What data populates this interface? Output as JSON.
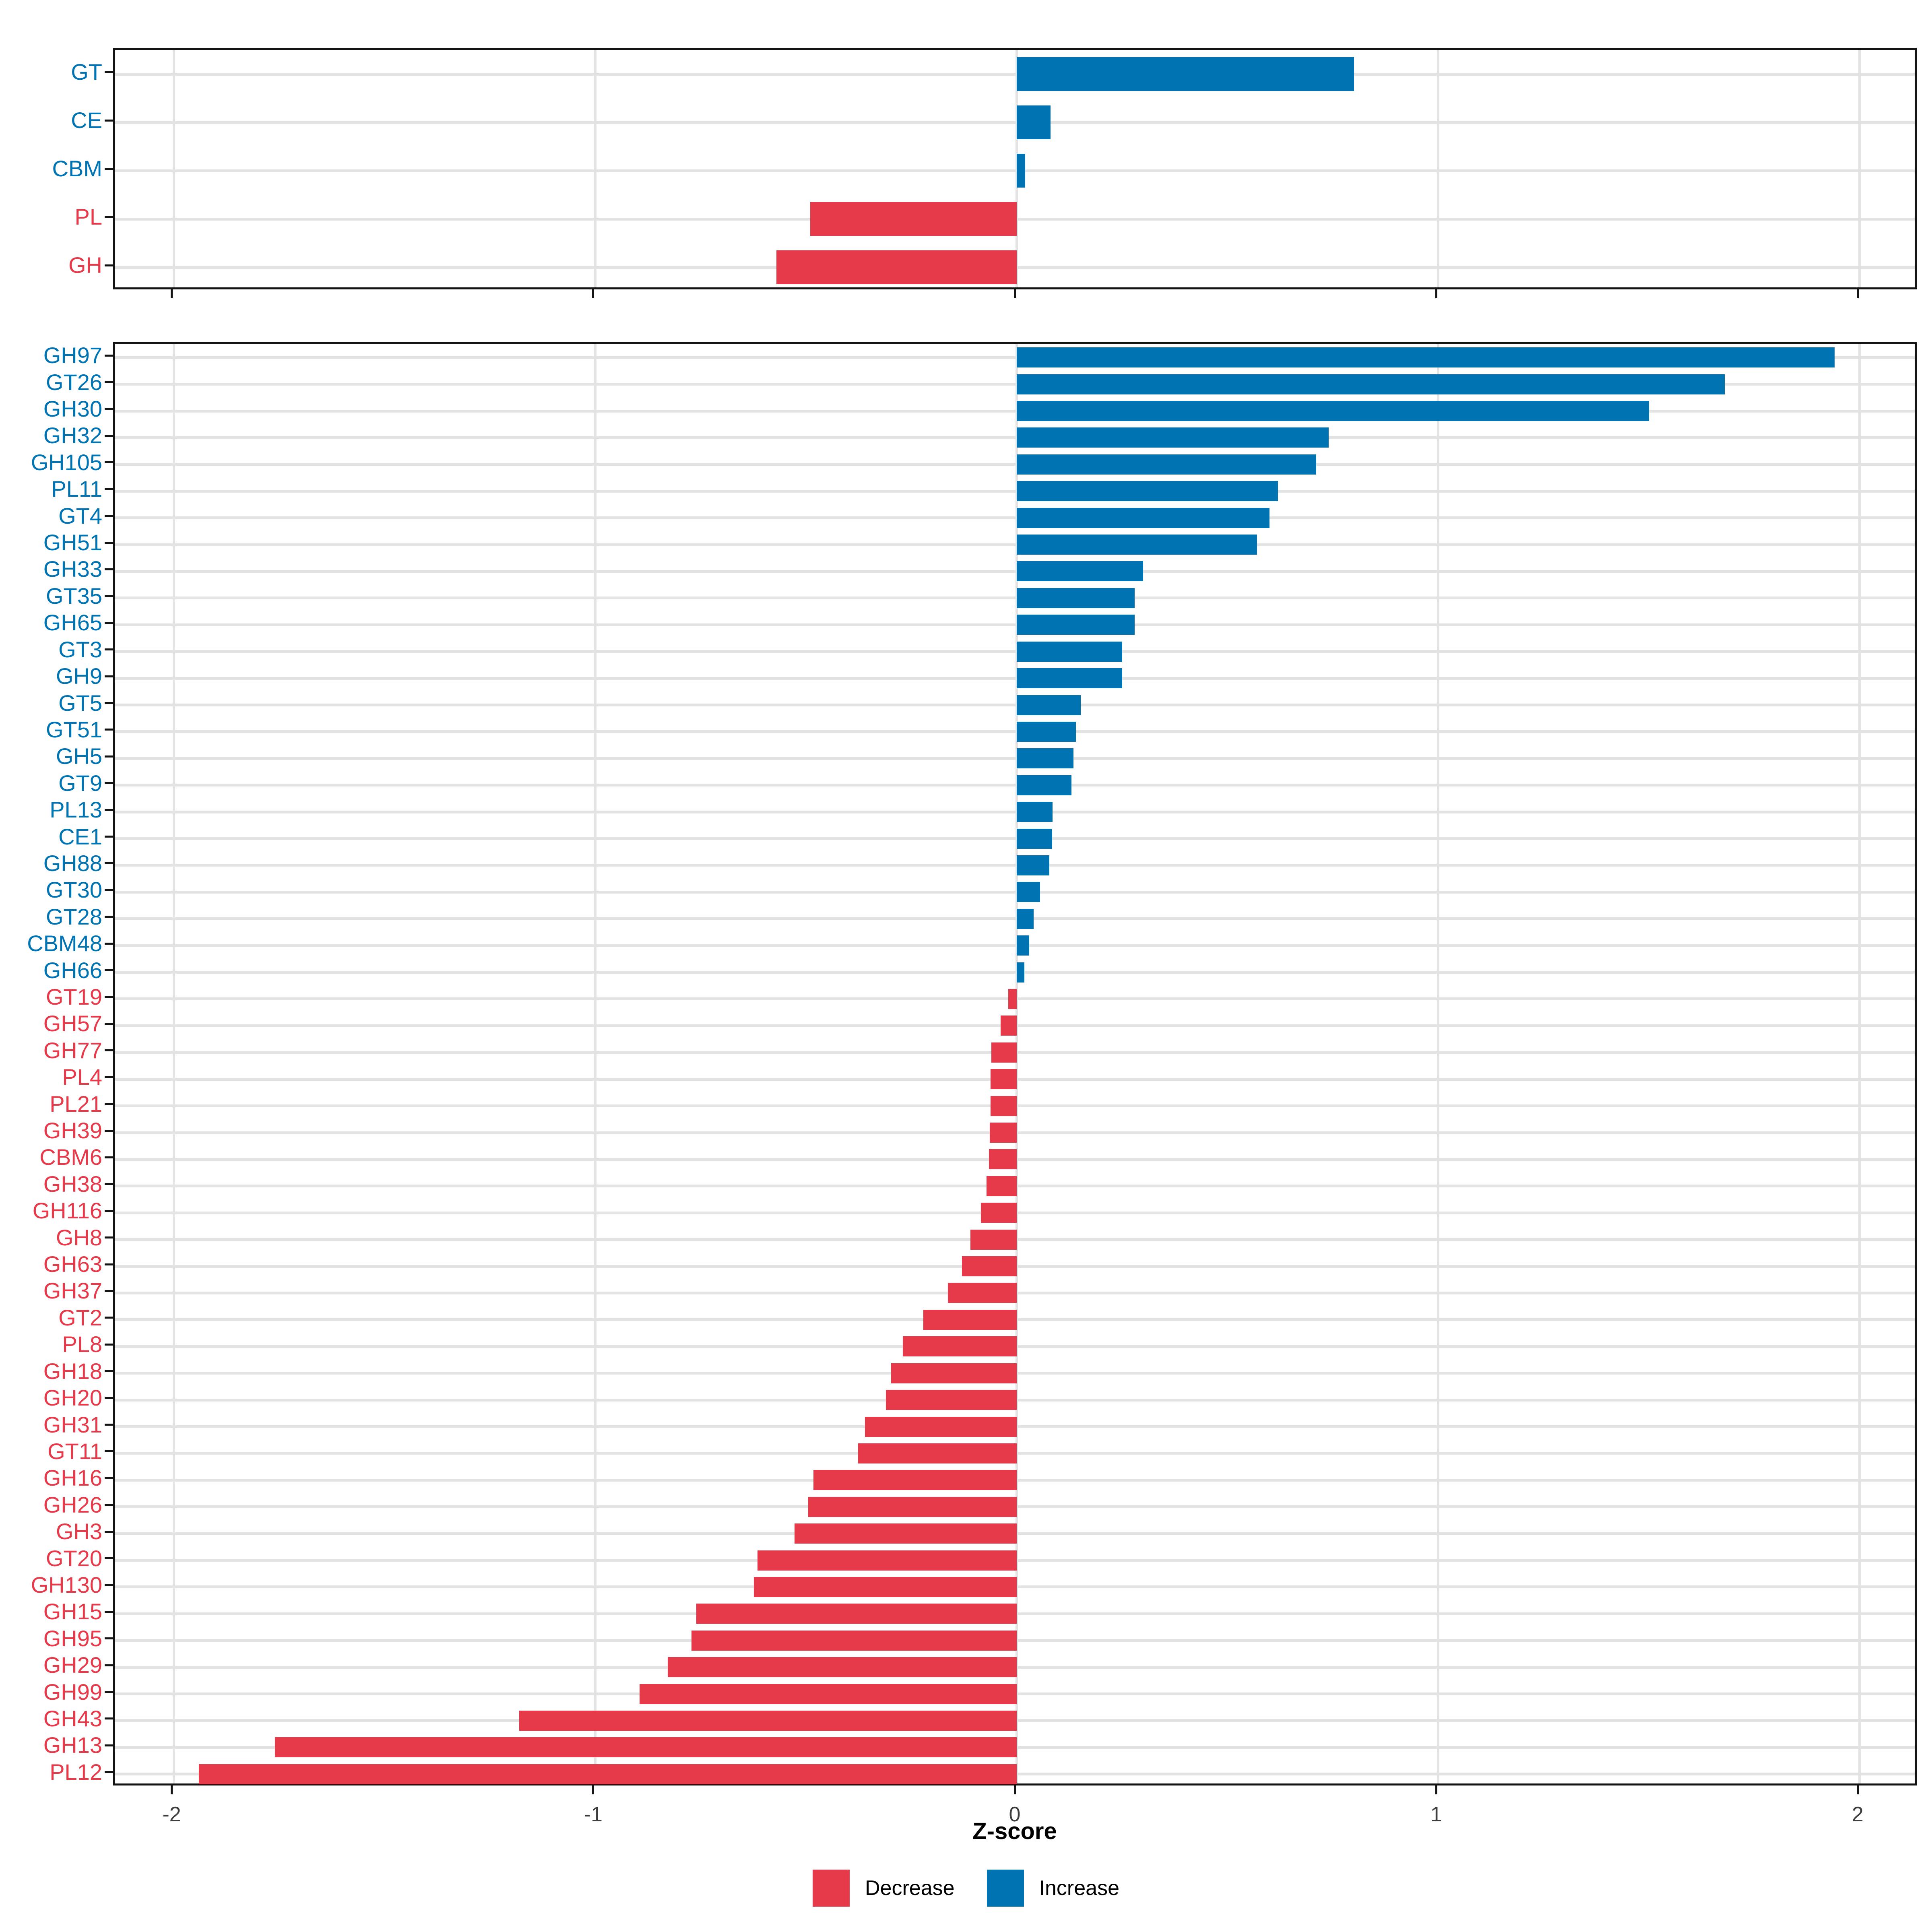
{
  "chart_data": {
    "type": "bar",
    "orientation": "horizontal",
    "title": "",
    "xlabel": "Z-score",
    "ylabel": "",
    "xlim": [
      -2.14,
      2.14
    ],
    "x_ticks": [
      "-2",
      "-1",
      "0",
      "1",
      "2"
    ],
    "x_tick_values": [
      -2,
      -1,
      0,
      1,
      2
    ],
    "grid": true,
    "legend_position": "bottom",
    "colors": {
      "increase": "#0073B2",
      "decrease": "#E6394A"
    },
    "panels": [
      {
        "name": "enzyme-class-summary",
        "categories": [
          "GT",
          "CE",
          "CBM",
          "PL",
          "GH"
        ],
        "values": [
          0.8,
          0.08,
          0.02,
          -0.49,
          -0.57
        ]
      },
      {
        "name": "enzyme-families",
        "categories": [
          "GH97",
          "GT26",
          "GH30",
          "GH32",
          "GH105",
          "PL11",
          "GT4",
          "GH51",
          "GH33",
          "GT35",
          "GH65",
          "GT3",
          "GH9",
          "GT5",
          "GT51",
          "GH5",
          "GT9",
          "PL13",
          "CE1",
          "GH88",
          "GT30",
          "GT28",
          "CBM48",
          "GH66",
          "GT19",
          "GH57",
          "GH77",
          "PL4",
          "PL21",
          "GH39",
          "CBM6",
          "GH38",
          "GH116",
          "GH8",
          "GH63",
          "GH37",
          "GT2",
          "PL8",
          "GH18",
          "GH20",
          "GH31",
          "GT11",
          "GH16",
          "GH26",
          "GH3",
          "GT20",
          "GH130",
          "GH15",
          "GH95",
          "GH29",
          "GH99",
          "GH43",
          "GH13",
          "PL12"
        ],
        "values": [
          1.94,
          1.68,
          1.5,
          0.74,
          0.71,
          0.62,
          0.6,
          0.57,
          0.3,
          0.28,
          0.28,
          0.25,
          0.25,
          0.152,
          0.14,
          0.135,
          0.13,
          0.085,
          0.084,
          0.077,
          0.055,
          0.04,
          0.03,
          0.018,
          -0.02,
          -0.038,
          -0.06,
          -0.062,
          -0.062,
          -0.064,
          -0.066,
          -0.072,
          -0.085,
          -0.11,
          -0.13,
          -0.163,
          -0.222,
          -0.27,
          -0.298,
          -0.31,
          -0.36,
          -0.376,
          -0.482,
          -0.495,
          -0.527,
          -0.615,
          -0.624,
          -0.76,
          -0.772,
          -0.828,
          -0.895,
          -1.18,
          -1.76,
          -1.94
        ]
      }
    ]
  },
  "legend": {
    "items": [
      {
        "label": "Decrease",
        "color": "#E6394A"
      },
      {
        "label": "Increase",
        "color": "#0073B2"
      }
    ]
  }
}
